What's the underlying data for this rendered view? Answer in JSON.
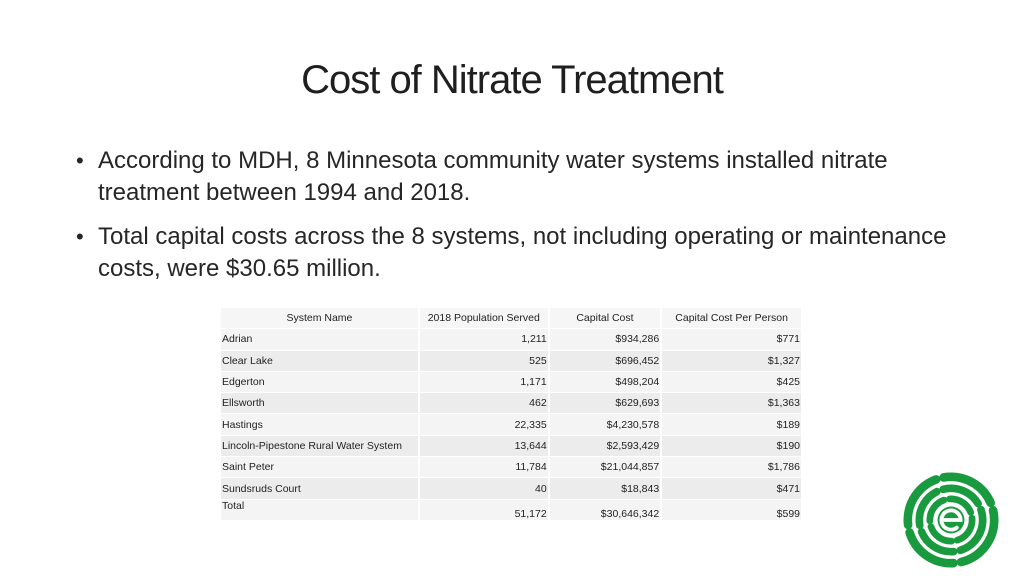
{
  "slide": {
    "title": "Cost of Nitrate Treatment",
    "bullets": [
      "According to MDH, 8 Minnesota community water systems installed nitrate treatment between 1994 and 2018.",
      "Total capital costs across the 8 systems, not including operating or maintenance costs, were $30.65 million."
    ],
    "bullet_glyph": "•"
  },
  "table": {
    "headers": [
      "System Name",
      "2018 Population Served",
      "Capital Cost",
      "Capital Cost Per Person"
    ],
    "rows": [
      [
        "Adrian",
        "1,211",
        "$934,286",
        "$771"
      ],
      [
        "Clear Lake",
        "525",
        "$696,452",
        "$1,327"
      ],
      [
        "Edgerton",
        "1,171",
        "$498,204",
        "$425"
      ],
      [
        "Ellsworth",
        "462",
        "$629,693",
        "$1,363"
      ],
      [
        "Hastings",
        "22,335",
        "$4,230,578",
        "$189"
      ],
      [
        "Lincoln-Pipestone Rural Water System",
        "13,644",
        "$2,593,429",
        "$190"
      ],
      [
        "Saint Peter",
        "11,784",
        "$21,044,857",
        "$1,786"
      ],
      [
        "Sundsruds Court",
        "40",
        "$18,843",
        "$471"
      ],
      [
        "Total",
        "51,172",
        "$30,646,342",
        "$599"
      ]
    ]
  },
  "logo": {
    "icon": "e-circle-logo-icon",
    "color": "#1a9a3f"
  }
}
